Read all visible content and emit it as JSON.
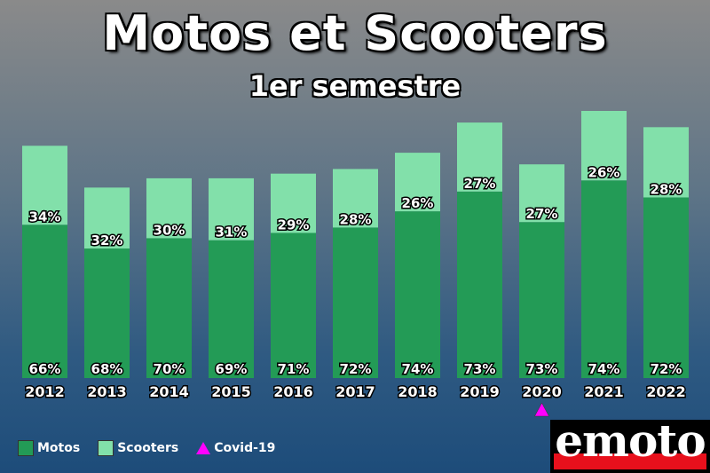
{
  "chart_data": {
    "type": "bar",
    "stacked": true,
    "title": "Motos et Scooters",
    "subtitle": "1er semestre",
    "categories": [
      "2012",
      "2013",
      "2014",
      "2015",
      "2016",
      "2017",
      "2018",
      "2019",
      "2020",
      "2021",
      "2022"
    ],
    "series": [
      {
        "name": "Motos",
        "color": "#239b56",
        "values": [
          66,
          68,
          70,
          69,
          71,
          72,
          74,
          73,
          73,
          74,
          72
        ],
        "labels": [
          "66%",
          "68%",
          "70%",
          "69%",
          "71%",
          "72%",
          "74%",
          "73%",
          "73%",
          "74%",
          "72%"
        ]
      },
      {
        "name": "Scooters",
        "color": "#82e0aa",
        "values": [
          34,
          32,
          30,
          31,
          29,
          28,
          26,
          27,
          27,
          26,
          28
        ],
        "labels": [
          "34%",
          "32%",
          "30%",
          "31%",
          "29%",
          "28%",
          "26%",
          "27%",
          "27%",
          "26%",
          "28%"
        ]
      }
    ],
    "relative_totals": [
      100,
      82,
      86,
      86,
      88,
      90,
      97,
      110,
      92,
      115,
      108
    ],
    "annotations": [
      {
        "category": "2020",
        "marker": "triangle",
        "color": "#ff00ff",
        "label": "Covid-19"
      }
    ],
    "legend": "bottom-left",
    "grid": false
  },
  "legend": {
    "motos": "Motos",
    "scooters": "Scooters",
    "covid": "Covid-19"
  },
  "logo": {
    "text": "emoto",
    "colors": [
      "#000000",
      "#ffffff",
      "#e8101c"
    ]
  }
}
